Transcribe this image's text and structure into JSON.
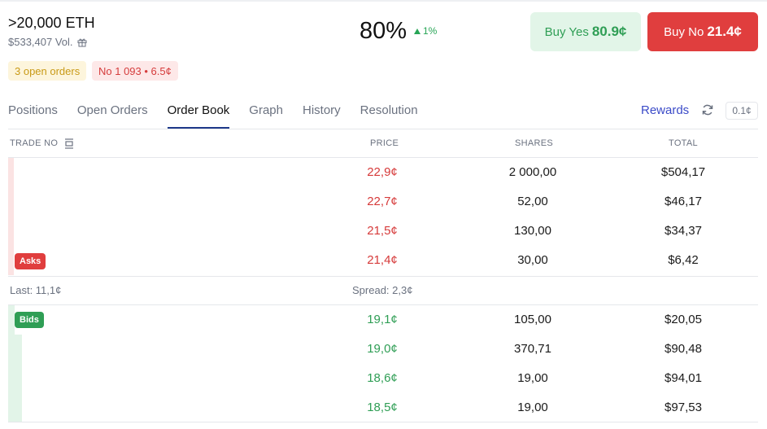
{
  "market": {
    "title": ">20,000 ETH",
    "volume": "$533,407 Vol.",
    "chance": "80%",
    "change": "1%"
  },
  "buttons": {
    "buy_yes_label": "Buy Yes",
    "buy_yes_price": "80.9¢",
    "buy_no_label": "Buy No",
    "buy_no_price": "21.4¢"
  },
  "badges": {
    "open_orders": "3 open orders",
    "position": "No 1 093 • 6.5¢"
  },
  "tabs": [
    {
      "label": "Positions"
    },
    {
      "label": "Open Orders"
    },
    {
      "label": "Order Book"
    },
    {
      "label": "Graph"
    },
    {
      "label": "History"
    },
    {
      "label": "Resolution"
    }
  ],
  "active_tab": "Order Book",
  "rewards": {
    "label": "Rewards",
    "tick": "0.1¢"
  },
  "columns": {
    "trade": "TRADE NO",
    "price": "PRICE",
    "shares": "SHARES",
    "total": "TOTAL"
  },
  "labels": {
    "asks": "Asks",
    "bids": "Bids"
  },
  "asks": [
    {
      "price": "22,9¢",
      "shares": "2 000,00",
      "total": "$504,17",
      "depth": 0.008
    },
    {
      "price": "22,7¢",
      "shares": "52,00",
      "total": "$46,17",
      "depth": 0.008
    },
    {
      "price": "21,5¢",
      "shares": "130,00",
      "total": "$34,37",
      "depth": 0.008
    },
    {
      "price": "21,4¢",
      "shares": "30,00",
      "total": "$6,42",
      "depth": 0.008
    }
  ],
  "spread": {
    "last": "Last: 11,1¢",
    "spread": "Spread: 2,3¢"
  },
  "bids": [
    {
      "price": "19,1¢",
      "shares": "105,00",
      "total": "$20,05",
      "depth": 0.009
    },
    {
      "price": "19,0¢",
      "shares": "370,71",
      "total": "$90,48",
      "depth": 0.018
    },
    {
      "price": "18,6¢",
      "shares": "19,00",
      "total": "$94,01",
      "depth": 0.018
    },
    {
      "price": "18,5¢",
      "shares": "19,00",
      "total": "$97,53",
      "depth": 0.018
    }
  ],
  "colors": {
    "ask": "#d63a3a",
    "bid": "#2f9e55",
    "accent": "#1e3a8a",
    "rewards": "#3b4bc8"
  },
  "icons": {
    "gift": "gift-icon",
    "up": "triangle-up-icon",
    "refresh": "refresh-icon",
    "layout": "layout-toggle-icon"
  }
}
